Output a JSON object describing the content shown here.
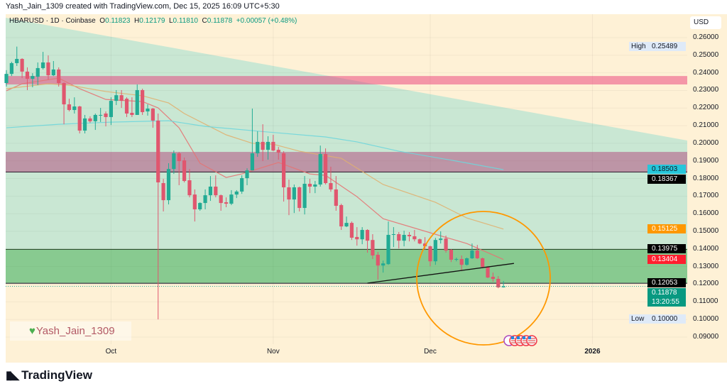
{
  "header": {
    "text": "Yash_Jain_1309 created with TradingView.com, Dec 15, 2025 16:09 UTC+5:30"
  },
  "legend": {
    "symbol": "HBARUSD · 1D · Coinbase",
    "o_label": "O",
    "o": "0.11823",
    "h_label": "H",
    "h": "0.12179",
    "l_label": "L",
    "l": "0.11810",
    "c_label": "C",
    "c": "0.11878",
    "change": "+0.00057 (+0.48%)"
  },
  "currency": "USD",
  "watermark": {
    "icon": "green-heart-icon",
    "text": "Yash_Jain_1309"
  },
  "footer": {
    "brand": "TradingView"
  },
  "colors": {
    "up": "#22ab94",
    "down": "#e0566e",
    "ma_fast": "#e57373",
    "ma_mid": "#e0b070",
    "ma_slow": "#6fd6dc",
    "accent_circle": "#ff9800"
  },
  "chart_data": {
    "type": "candlestick",
    "symbol": "HBARUSD",
    "interval": "1D",
    "ylim": [
      0.085,
      0.265
    ],
    "price_ticks": [
      "0.26000",
      "0.25000",
      "0.24000",
      "0.23000",
      "0.22000",
      "0.21000",
      "0.20000",
      "0.19000",
      "0.18000",
      "0.17000",
      "0.16000",
      "0.15000",
      "0.14000",
      "0.13000",
      "0.12000",
      "0.11000",
      "0.10000",
      "0.09000"
    ],
    "time_ticks": [
      {
        "label": "Oct",
        "date": "2025-10-01"
      },
      {
        "label": "Nov",
        "date": "2025-11-01"
      },
      {
        "label": "Dec",
        "date": "2025-12-01"
      },
      {
        "label": "2026",
        "date": "2026-01-01"
      }
    ],
    "candles_fields": [
      "date",
      "open",
      "high",
      "low",
      "close"
    ],
    "candles": [
      [
        "2025-09-11",
        0.2342,
        0.2415,
        0.2322,
        0.2394
      ],
      [
        "2025-09-12",
        0.2394,
        0.2463,
        0.2382,
        0.2455
      ],
      [
        "2025-09-13",
        0.2455,
        0.2549,
        0.2439,
        0.2479
      ],
      [
        "2025-09-14",
        0.2479,
        0.2483,
        0.237,
        0.2407
      ],
      [
        "2025-09-15",
        0.2407,
        0.2431,
        0.2302,
        0.2366
      ],
      [
        "2025-09-16",
        0.2366,
        0.2398,
        0.2318,
        0.2382
      ],
      [
        "2025-09-17",
        0.2378,
        0.2459,
        0.233,
        0.2427
      ],
      [
        "2025-09-18",
        0.2427,
        0.2519,
        0.2419,
        0.2459
      ],
      [
        "2025-09-19",
        0.2459,
        0.2499,
        0.2362,
        0.2386
      ],
      [
        "2025-09-20",
        0.2386,
        0.2467,
        0.2382,
        0.2419
      ],
      [
        "2025-09-21",
        0.2419,
        0.2431,
        0.2322,
        0.2342
      ],
      [
        "2025-09-22",
        0.2342,
        0.2346,
        0.2108,
        0.2221
      ],
      [
        "2025-09-23",
        0.2221,
        0.2253,
        0.2181,
        0.2189
      ],
      [
        "2025-09-24",
        0.2189,
        0.2261,
        0.2169,
        0.2209
      ],
      [
        "2025-09-25",
        0.2209,
        0.2213,
        0.2056,
        0.2072
      ],
      [
        "2025-09-26",
        0.2072,
        0.2161,
        0.2056,
        0.2141
      ],
      [
        "2025-09-27",
        0.2141,
        0.2153,
        0.2116,
        0.2125
      ],
      [
        "2025-09-28",
        0.2125,
        0.2169,
        0.2076,
        0.2161
      ],
      [
        "2025-09-29",
        0.2157,
        0.2201,
        0.2121,
        0.2161
      ],
      [
        "2025-09-30",
        0.2169,
        0.2181,
        0.2096,
        0.2149
      ],
      [
        "2025-10-01",
        0.2149,
        0.2261,
        0.2104,
        0.2241
      ],
      [
        "2025-10-02",
        0.2241,
        0.2302,
        0.2217,
        0.2273
      ],
      [
        "2025-10-03",
        0.2273,
        0.2302,
        0.2201,
        0.2241
      ],
      [
        "2025-10-04",
        0.2253,
        0.2261,
        0.2149,
        0.2169
      ],
      [
        "2025-10-05",
        0.2173,
        0.2261,
        0.2149,
        0.2161
      ],
      [
        "2025-10-06",
        0.2161,
        0.2334,
        0.2161,
        0.2302
      ],
      [
        "2025-10-07",
        0.2302,
        0.231,
        0.2161,
        0.2177
      ],
      [
        "2025-10-08",
        0.2181,
        0.2221,
        0.2157,
        0.2197
      ],
      [
        "2025-10-09",
        0.2197,
        0.2201,
        0.2088,
        0.2129
      ],
      [
        "2025-10-10",
        0.2129,
        0.2169,
        0.1,
        0.1778
      ],
      [
        "2025-10-11",
        0.1774,
        0.1798,
        0.1613,
        0.1677
      ],
      [
        "2025-10-12",
        0.1677,
        0.1887,
        0.1653,
        0.1854
      ],
      [
        "2025-10-13",
        0.1854,
        0.1959,
        0.1826,
        0.1943
      ],
      [
        "2025-10-14",
        0.1943,
        0.1951,
        0.1762,
        0.1899
      ],
      [
        "2025-10-15",
        0.1903,
        0.1919,
        0.1778,
        0.1786
      ],
      [
        "2025-10-16",
        0.179,
        0.1854,
        0.1693,
        0.1705
      ],
      [
        "2025-10-17",
        0.1709,
        0.1738,
        0.1556,
        0.1625
      ],
      [
        "2025-10-18",
        0.1625,
        0.1665,
        0.1617,
        0.1661
      ],
      [
        "2025-10-19",
        0.1661,
        0.1738,
        0.1625,
        0.1705
      ],
      [
        "2025-10-20",
        0.1705,
        0.1814,
        0.1673,
        0.1754
      ],
      [
        "2025-10-21",
        0.1754,
        0.1818,
        0.1693,
        0.1705
      ],
      [
        "2025-10-22",
        0.1705,
        0.1709,
        0.1617,
        0.1661
      ],
      [
        "2025-10-23",
        0.1665,
        0.1693,
        0.1637,
        0.1657
      ],
      [
        "2025-10-24",
        0.1657,
        0.1734,
        0.1649,
        0.1709
      ],
      [
        "2025-10-25",
        0.1709,
        0.1734,
        0.1689,
        0.1726
      ],
      [
        "2025-10-26",
        0.1726,
        0.1818,
        0.1713,
        0.1802
      ],
      [
        "2025-10-27",
        0.1802,
        0.1858,
        0.1762,
        0.1846
      ],
      [
        "2025-10-28",
        0.1846,
        0.2197,
        0.1846,
        0.1943
      ],
      [
        "2025-10-29",
        0.1943,
        0.2068,
        0.1923,
        0.2008
      ],
      [
        "2025-10-30",
        0.2008,
        0.2108,
        0.1899,
        0.1963
      ],
      [
        "2025-10-31",
        0.1963,
        0.204,
        0.1907,
        0.2008
      ],
      [
        "2025-11-01",
        0.2008,
        0.2048,
        0.1955,
        0.1959
      ],
      [
        "2025-11-02",
        0.1963,
        0.1979,
        0.1907,
        0.1947
      ],
      [
        "2025-11-03",
        0.1943,
        0.1955,
        0.1669,
        0.175
      ],
      [
        "2025-11-04",
        0.175,
        0.1794,
        0.1592,
        0.1681
      ],
      [
        "2025-11-05",
        0.1681,
        0.1766,
        0.1604,
        0.175
      ],
      [
        "2025-11-06",
        0.175,
        0.1754,
        0.1613,
        0.1633
      ],
      [
        "2025-11-07",
        0.1633,
        0.1814,
        0.1596,
        0.177
      ],
      [
        "2025-11-08",
        0.177,
        0.1798,
        0.1717,
        0.1754
      ],
      [
        "2025-11-09",
        0.1754,
        0.1786,
        0.1717,
        0.1766
      ],
      [
        "2025-11-10",
        0.1766,
        0.1987,
        0.1754,
        0.1939
      ],
      [
        "2025-11-11",
        0.1939,
        0.1971,
        0.1766,
        0.1774
      ],
      [
        "2025-11-12",
        0.1774,
        0.1867,
        0.1725,
        0.1738
      ],
      [
        "2025-11-13",
        0.1738,
        0.1814,
        0.1617,
        0.1645
      ],
      [
        "2025-11-14",
        0.1649,
        0.1657,
        0.1508,
        0.1528
      ],
      [
        "2025-11-15",
        0.1528,
        0.1584,
        0.1524,
        0.1548
      ],
      [
        "2025-11-16",
        0.1548,
        0.1556,
        0.1451,
        0.1464
      ],
      [
        "2025-11-17",
        0.1468,
        0.1524,
        0.1419,
        0.1455
      ],
      [
        "2025-11-18",
        0.1455,
        0.1524,
        0.1427,
        0.1508
      ],
      [
        "2025-11-19",
        0.1508,
        0.1512,
        0.1379,
        0.1447
      ],
      [
        "2025-11-20",
        0.1451,
        0.1484,
        0.1343,
        0.1363
      ],
      [
        "2025-11-21",
        0.1367,
        0.1383,
        0.1226,
        0.1306
      ],
      [
        "2025-11-22",
        0.1306,
        0.1334,
        0.1266,
        0.1318
      ],
      [
        "2025-11-23",
        0.1314,
        0.1556,
        0.131,
        0.148
      ],
      [
        "2025-11-24",
        0.148,
        0.1524,
        0.1411,
        0.1484
      ],
      [
        "2025-11-25",
        0.1484,
        0.1496,
        0.1403,
        0.1447
      ],
      [
        "2025-11-26",
        0.1447,
        0.1504,
        0.1415,
        0.148
      ],
      [
        "2025-11-27",
        0.148,
        0.1496,
        0.1443,
        0.1472
      ],
      [
        "2025-11-28",
        0.1472,
        0.1508,
        0.1443,
        0.1455
      ],
      [
        "2025-11-29",
        0.1455,
        0.1459,
        0.1427,
        0.1431
      ],
      [
        "2025-11-30",
        0.1431,
        0.1467,
        0.1395,
        0.1415
      ],
      [
        "2025-12-01",
        0.1415,
        0.1419,
        0.1302,
        0.133
      ],
      [
        "2025-12-02",
        0.133,
        0.1463,
        0.131,
        0.1451
      ],
      [
        "2025-12-03",
        0.1451,
        0.15,
        0.1431,
        0.1459
      ],
      [
        "2025-12-04",
        0.1459,
        0.1476,
        0.1379,
        0.1391
      ],
      [
        "2025-12-05",
        0.1395,
        0.1399,
        0.1326,
        0.1339
      ],
      [
        "2025-12-06",
        0.1342,
        0.1351,
        0.133,
        0.1343
      ],
      [
        "2025-12-07",
        0.1343,
        0.1363,
        0.1274,
        0.131
      ],
      [
        "2025-12-08",
        0.131,
        0.1351,
        0.1306,
        0.1347
      ],
      [
        "2025-12-09",
        0.1347,
        0.1431,
        0.1343,
        0.1391
      ],
      [
        "2025-12-10",
        0.1391,
        0.1423,
        0.1343,
        0.1347
      ],
      [
        "2025-12-11",
        0.1347,
        0.1351,
        0.129,
        0.1298
      ],
      [
        "2025-12-12",
        0.1298,
        0.1302,
        0.1234,
        0.1238
      ],
      [
        "2025-12-13",
        0.1242,
        0.1266,
        0.1214,
        0.123
      ],
      [
        "2025-12-14",
        0.123,
        0.1246,
        0.1177,
        0.11823
      ],
      [
        "2025-12-15",
        0.11823,
        0.12179,
        0.1181,
        0.11878
      ]
    ],
    "moving_averages": [
      {
        "color_key": "ma_fast",
        "points": [
          [
            "2025-09-11",
            0.2298
          ],
          [
            "2025-09-14",
            0.2338
          ],
          [
            "2025-09-21",
            0.237
          ],
          [
            "2025-09-25",
            0.231
          ],
          [
            "2025-09-30",
            0.2249
          ],
          [
            "2025-10-07",
            0.2237
          ],
          [
            "2025-10-10",
            0.2201
          ],
          [
            "2025-10-14",
            0.2088
          ],
          [
            "2025-10-18",
            0.1887
          ],
          [
            "2025-10-23",
            0.1806
          ],
          [
            "2025-10-26",
            0.1826
          ],
          [
            "2025-11-02",
            0.1891
          ],
          [
            "2025-11-08",
            0.1826
          ],
          [
            "2025-11-11",
            0.1818
          ],
          [
            "2025-11-17",
            0.1697
          ],
          [
            "2025-11-22",
            0.1572
          ],
          [
            "2025-12-01",
            0.1492
          ],
          [
            "2025-12-08",
            0.1431
          ],
          [
            "2025-12-15",
            0.134
          ]
        ]
      },
      {
        "color_key": "ma_mid",
        "points": [
          [
            "2025-09-11",
            0.231
          ],
          [
            "2025-09-19",
            0.2338
          ],
          [
            "2025-09-23",
            0.233
          ],
          [
            "2025-09-30",
            0.2294
          ],
          [
            "2025-10-07",
            0.227
          ],
          [
            "2025-10-12",
            0.2229
          ],
          [
            "2025-10-15",
            0.2169
          ],
          [
            "2025-10-23",
            0.2048
          ],
          [
            "2025-10-28",
            0.2
          ],
          [
            "2025-11-01",
            0.1995
          ],
          [
            "2025-11-06",
            0.1955
          ],
          [
            "2025-11-14",
            0.1915
          ],
          [
            "2025-11-22",
            0.1766
          ],
          [
            "2025-12-02",
            0.1665
          ],
          [
            "2025-12-08",
            0.1576
          ],
          [
            "2025-12-15",
            0.1513
          ]
        ]
      },
      {
        "color_key": "ma_slow",
        "points": [
          [
            "2025-09-11",
            0.2088
          ],
          [
            "2025-09-21",
            0.2108
          ],
          [
            "2025-10-01",
            0.212
          ],
          [
            "2025-10-12",
            0.2128
          ],
          [
            "2025-10-19",
            0.2096
          ],
          [
            "2025-10-31",
            0.2064
          ],
          [
            "2025-11-11",
            0.2036
          ],
          [
            "2025-11-17",
            0.2008
          ],
          [
            "2025-11-25",
            0.1955
          ],
          [
            "2025-12-06",
            0.1899
          ],
          [
            "2025-12-15",
            0.185
          ]
        ]
      }
    ],
    "zones": [
      {
        "top": 0.2382,
        "bottom": 0.2334,
        "color": "#e8286e"
      },
      {
        "top": 0.1951,
        "bottom": 0.18367,
        "color": "#b0306e",
        "bottom_line": true
      },
      {
        "top": 0.13975,
        "bottom": 0.12053,
        "color": "#3aa63e",
        "top_line": true,
        "bottom_line": true
      }
    ],
    "trendline": [
      [
        "2025-11-19",
        0.1206
      ],
      [
        "2025-12-17",
        0.1318
      ]
    ],
    "price_labels": [
      {
        "value": 0.18503,
        "text": "0.18503",
        "bg": "#26c6da",
        "fg": "#131722"
      },
      {
        "value": 0.18367,
        "text": "0.18367",
        "bg": "#000000",
        "fg": "#ffffff"
      },
      {
        "value": 0.15125,
        "text": "0.15125",
        "bg": "#ff9800",
        "fg": "#ffffff"
      },
      {
        "value": 0.13975,
        "text": "0.13975",
        "bg": "#000000",
        "fg": "#ffffff"
      },
      {
        "value": 0.13404,
        "text": "0.13404",
        "bg": "#ff1f2f",
        "fg": "#ffffff"
      },
      {
        "value": 0.12053,
        "text": "0.12053",
        "bg": "#000000",
        "fg": "#ffffff"
      }
    ],
    "last_price": {
      "value": 0.11878,
      "text": "0.11878",
      "countdown": "13:20:55",
      "bg": "#089981"
    },
    "high_marker": {
      "label": "High",
      "value": 0.25489,
      "text": "0.25489"
    },
    "low_marker": {
      "label": "Low",
      "value": 0.1,
      "text": "0.10000"
    },
    "event_icons": [
      "earnings-icon",
      "us-flag-icon",
      "us-flag-icon",
      "us-flag-icon",
      "us-flag-icon"
    ]
  }
}
